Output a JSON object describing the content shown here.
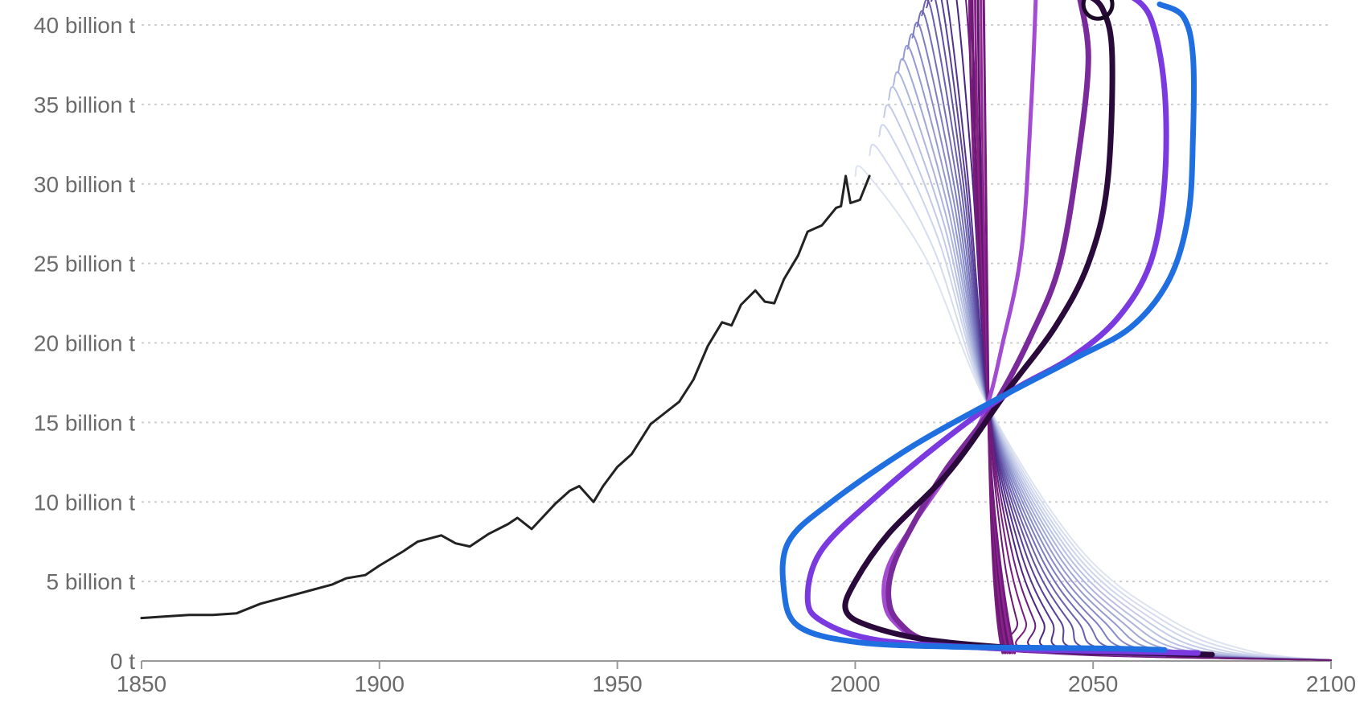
{
  "chart_data": {
    "type": "line",
    "title": "",
    "xlabel": "",
    "ylabel": "",
    "xlim": [
      1850,
      2100
    ],
    "ylim": [
      0,
      42
    ],
    "grid": true,
    "x_ticks": [
      {
        "value": 1850,
        "label": "1850"
      },
      {
        "value": 1900,
        "label": "1900"
      },
      {
        "value": 1950,
        "label": "1950"
      },
      {
        "value": 2000,
        "label": "2000"
      },
      {
        "value": 2050,
        "label": "2050"
      },
      {
        "value": 2100,
        "label": "2100"
      }
    ],
    "y_ticks": [
      {
        "value": 0,
        "label": "0 t"
      },
      {
        "value": 5,
        "label": "5 billion t"
      },
      {
        "value": 10,
        "label": "10 billion t"
      },
      {
        "value": 15,
        "label": "15 billion t"
      },
      {
        "value": 20,
        "label": "20 billion t"
      },
      {
        "value": 25,
        "label": "25 billion t"
      },
      {
        "value": 30,
        "label": "30 billion t"
      },
      {
        "value": 35,
        "label": "35 billion t"
      },
      {
        "value": 40,
        "label": "40 billion t"
      }
    ],
    "historical": {
      "color": "#222222",
      "points": [
        [
          1850,
          2.7
        ],
        [
          1855,
          2.8
        ],
        [
          1860,
          2.9
        ],
        [
          1865,
          2.9
        ],
        [
          1870,
          3.0
        ],
        [
          1875,
          3.6
        ],
        [
          1880,
          4.0
        ],
        [
          1885,
          4.4
        ],
        [
          1890,
          4.8
        ],
        [
          1893,
          5.2
        ],
        [
          1897,
          5.4
        ],
        [
          1900,
          6.0
        ],
        [
          1905,
          6.9
        ],
        [
          1908,
          7.5
        ],
        [
          1913,
          7.9
        ],
        [
          1916,
          7.4
        ],
        [
          1919,
          7.2
        ],
        [
          1923,
          8.0
        ],
        [
          1927,
          8.6
        ],
        [
          1929,
          9.0
        ],
        [
          1932,
          8.3
        ],
        [
          1937,
          9.9
        ],
        [
          1940,
          10.7
        ],
        [
          1942,
          11.0
        ],
        [
          1945,
          10.0
        ],
        [
          1947,
          11.0
        ],
        [
          1950,
          12.2
        ],
        [
          1953,
          13.0
        ],
        [
          1957,
          14.9
        ],
        [
          1960,
          15.6
        ],
        [
          1963,
          16.3
        ],
        [
          1966,
          17.7
        ],
        [
          1969,
          19.8
        ],
        [
          1972,
          21.3
        ],
        [
          1974,
          21.1
        ],
        [
          1976,
          22.4
        ],
        [
          1979,
          23.3
        ],
        [
          1981,
          22.6
        ],
        [
          1983,
          22.5
        ],
        [
          1985,
          24.0
        ],
        [
          1988,
          25.5
        ],
        [
          1990,
          27.0
        ],
        [
          1993,
          27.4
        ],
        [
          1996,
          28.5
        ],
        [
          1997,
          28.6
        ],
        [
          1998,
          30.5
        ],
        [
          1999,
          28.8
        ],
        [
          2001,
          29.0
        ],
        [
          2003,
          30.5
        ]
      ]
    },
    "scenarios": {
      "convergence_point": [
        2028,
        16.0
      ],
      "faint_curves": [
        {
          "start_year": 2000,
          "start_value": 30.5,
          "color": "#dde4f0",
          "width": 2
        },
        {
          "start_year": 2003,
          "start_value": 31.8,
          "color": "#d6dcef",
          "width": 2
        },
        {
          "start_year": 2005,
          "start_value": 33.0,
          "color": "#cdd5ec",
          "width": 2
        },
        {
          "start_year": 2006,
          "start_value": 34.2,
          "color": "#c3cbe7",
          "width": 2
        },
        {
          "start_year": 2007,
          "start_value": 35.3,
          "color": "#b8c1e2",
          "width": 2
        },
        {
          "start_year": 2008,
          "start_value": 36.2,
          "color": "#adb5dc",
          "width": 2
        },
        {
          "start_year": 2009,
          "start_value": 37.0,
          "color": "#a1a8d6",
          "width": 2
        },
        {
          "start_year": 2010,
          "start_value": 37.8,
          "color": "#949acf",
          "width": 2
        },
        {
          "start_year": 2011,
          "start_value": 38.5,
          "color": "#888cc8",
          "width": 2
        },
        {
          "start_year": 2012,
          "start_value": 39.2,
          "color": "#7d7ec0",
          "width": 2
        },
        {
          "start_year": 2013,
          "start_value": 39.9,
          "color": "#726fb8",
          "width": 2
        },
        {
          "start_year": 2014,
          "start_value": 40.6,
          "color": "#6a60ae",
          "width": 2
        },
        {
          "start_year": 2015,
          "start_value": 41.1,
          "color": "#6150a3",
          "width": 2
        },
        {
          "start_year": 2016,
          "start_value": 41.5,
          "color": "#594199",
          "width": 2
        },
        {
          "start_year": 2017,
          "start_value": 41.8,
          "color": "#52338f",
          "width": 2
        },
        {
          "start_year": 2019,
          "start_value": 42.0,
          "color": "#4b2584",
          "width": 2
        },
        {
          "start_year": 2021,
          "start_value": 42.0,
          "color": "#6a1f7e",
          "width": 2
        },
        {
          "start_year": 2023,
          "start_value": 42.0,
          "color": "#7b1b80",
          "width": 2
        },
        {
          "start_year": 2025,
          "start_value": 42.0,
          "color": "#6b1a73",
          "width": 2
        }
      ],
      "bold_curves": [
        {
          "color": "#a34bd1",
          "width": 5,
          "points": [
            [
              2038,
              42
            ],
            [
              2037,
              35
            ],
            [
              2035,
              26
            ],
            [
              2031,
              20
            ],
            [
              2027,
              15.5
            ],
            [
              2020,
              12
            ],
            [
              2012,
              8.5
            ],
            [
              2007,
              6
            ],
            [
              2006,
              4
            ],
            [
              2008,
              2.5
            ],
            [
              2015,
              1.3
            ],
            [
              2035,
              0.8
            ],
            [
              2050,
              0.5
            ],
            [
              2058,
              0.4
            ]
          ]
        },
        {
          "color": "#7a2a9a",
          "width": 7,
          "points": [
            [
              2047,
              42
            ],
            [
              2049,
              38
            ],
            [
              2047,
              32
            ],
            [
              2043,
              25
            ],
            [
              2037,
              20.5
            ],
            [
              2029,
              16
            ],
            [
              2019,
              12
            ],
            [
              2012,
              8.5
            ],
            [
              2008,
              6
            ],
            [
              2007,
              4
            ],
            [
              2009,
              2.5
            ],
            [
              2016,
              1.2
            ],
            [
              2035,
              0.7
            ],
            [
              2055,
              0.5
            ],
            [
              2065,
              0.4
            ]
          ]
        },
        {
          "color": "#2a0a3a",
          "width": 7,
          "points": [
            [
              2048,
              42
            ],
            [
              2052,
              41
            ],
            [
              2054,
              38
            ],
            [
              2053,
              30
            ],
            [
              2049,
              25
            ],
            [
              2042,
              21
            ],
            [
              2032,
              17
            ],
            [
              2020,
              12
            ],
            [
              2007,
              8
            ],
            [
              2000,
              5
            ],
            [
              1998,
              3.2
            ],
            [
              2003,
              2.2
            ],
            [
              2016,
              1.3
            ],
            [
              2040,
              0.7
            ],
            [
              2062,
              0.5
            ],
            [
              2075,
              0.4
            ]
          ]
        },
        {
          "color": "#7a3ae0",
          "width": 7,
          "points": [
            [
              2057,
              42
            ],
            [
              2062,
              40.5
            ],
            [
              2065,
              36
            ],
            [
              2065,
              30
            ],
            [
              2062,
              25
            ],
            [
              2055,
              21.5
            ],
            [
              2045,
              19
            ],
            [
              2033,
              17
            ],
            [
              2020,
              14.2
            ],
            [
              2005,
              10.5
            ],
            [
              1993,
              7
            ],
            [
              1990,
              4
            ],
            [
              1993,
              2.5
            ],
            [
              2005,
              1.3
            ],
            [
              2030,
              0.8
            ],
            [
              2055,
              0.6
            ],
            [
              2072,
              0.5
            ]
          ]
        },
        {
          "color": "#1f6fe0",
          "width": 7,
          "points": [
            [
              2064,
              41.3
            ],
            [
              2069,
              40.5
            ],
            [
              2071,
              38
            ],
            [
              2071,
              33
            ],
            [
              2070,
              28
            ],
            [
              2066,
              24
            ],
            [
              2058,
              21
            ],
            [
              2046,
              19
            ],
            [
              2030,
              16.5
            ],
            [
              2012,
              13.5
            ],
            [
              1995,
              10
            ],
            [
              1986,
              7.5
            ],
            [
              1985,
              4.5
            ],
            [
              1988,
              2.2
            ],
            [
              2000,
              1.2
            ],
            [
              2020,
              0.9
            ],
            [
              2050,
              0.8
            ],
            [
              2065,
              0.7
            ]
          ]
        }
      ]
    }
  }
}
